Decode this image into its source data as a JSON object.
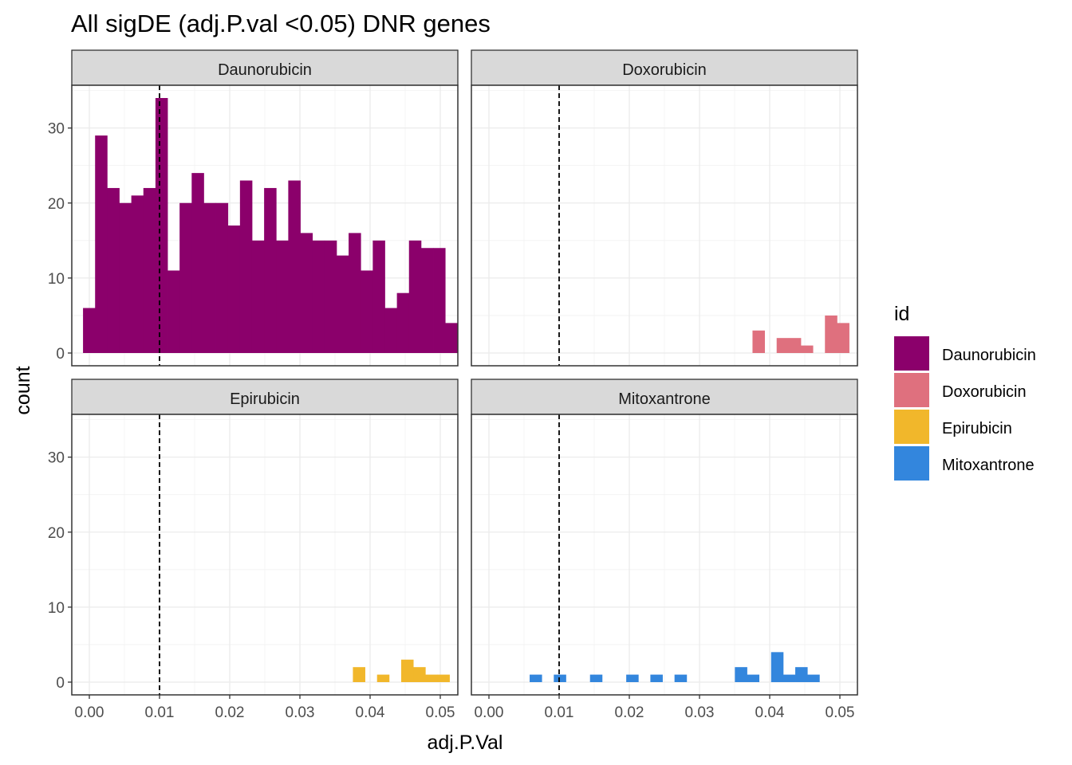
{
  "chart_data": {
    "type": "bar",
    "title": "All sigDE (adj.P.val <0.05) DNR genes",
    "xlabel": "adj.P.Val",
    "ylabel": "count",
    "xlim": [
      -0.0025,
      0.0525
    ],
    "ylim": [
      -1.7,
      35.7
    ],
    "x_ticks": [
      0.0,
      0.01,
      0.02,
      0.03,
      0.04,
      0.05
    ],
    "x_tick_labels": [
      "0.00",
      "0.01",
      "0.02",
      "0.03",
      "0.04",
      "0.05"
    ],
    "y_ticks": [
      0,
      10,
      20,
      30
    ],
    "y_tick_labels": [
      "0",
      "10",
      "20",
      "30"
    ],
    "vline_x": 0.01,
    "vline_style": "dashed",
    "grid": true,
    "legend": {
      "title": "id",
      "position": "right",
      "entries": [
        {
          "label": "Daunorubicin",
          "color": "#8B006B"
        },
        {
          "label": "Doxorubicin",
          "color": "#DF707E"
        },
        {
          "label": "Epirubicin",
          "color": "#F1B72B"
        },
        {
          "label": "Mitoxantrone",
          "color": "#3386DD"
        }
      ]
    },
    "panels": [
      {
        "name": "Daunorubicin",
        "color": "#8B006B",
        "x_start": -0.0009,
        "bin_width": 0.00172,
        "counts": [
          6,
          29,
          22,
          20,
          21,
          22,
          34,
          11,
          20,
          24,
          20,
          20,
          17,
          23,
          15,
          22,
          15,
          23,
          16,
          15,
          15,
          13,
          16,
          11,
          15,
          6,
          8,
          15,
          14,
          14,
          4
        ]
      },
      {
        "name": "Doxorubicin",
        "color": "#DF707E",
        "x_start": 0.03755,
        "bin_width": 0.00172,
        "counts": [
          3,
          0,
          2,
          2,
          1,
          0,
          5,
          4
        ]
      },
      {
        "name": "Epirubicin",
        "color": "#F1B72B",
        "x_start": 0.03755,
        "bin_width": 0.00172,
        "counts": [
          2,
          0,
          1,
          0,
          3,
          2,
          1,
          1
        ]
      },
      {
        "name": "Mitoxantrone",
        "color": "#3386DD",
        "x_start": 0.0058,
        "bin_width": 0.00172,
        "counts": [
          1,
          0,
          1,
          0,
          0,
          1,
          0,
          0,
          1,
          0,
          1,
          0,
          1,
          0,
          0,
          0,
          0,
          2,
          1,
          0,
          4,
          1,
          2,
          1
        ]
      }
    ]
  }
}
